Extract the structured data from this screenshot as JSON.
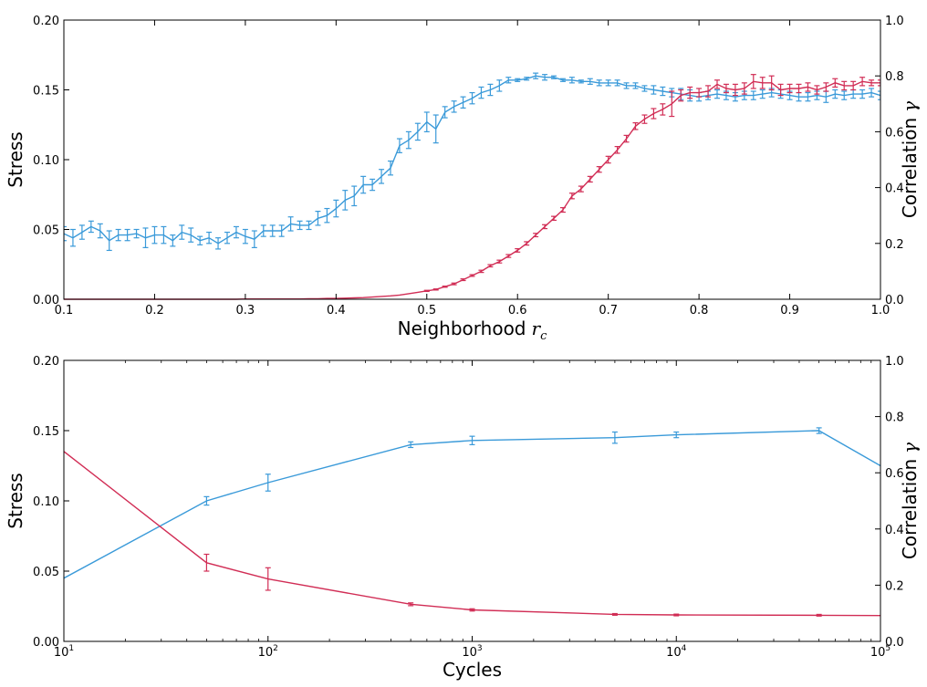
{
  "chart_data": [
    {
      "type": "line",
      "title": "",
      "xlabel": "Neighborhood",
      "xlabel_math": "r",
      "xlabel_sub": "c",
      "ylabel": "Stress",
      "y2label": "Correlation",
      "y2label_math": "γ",
      "xscale": "linear",
      "xlim": [
        0.1,
        1.0
      ],
      "ylim": [
        0,
        0.2
      ],
      "y2lim": [
        0,
        1.0
      ],
      "xticks": [
        "0.1",
        "0.2",
        "0.3",
        "0.4",
        "0.5",
        "0.6",
        "0.7",
        "0.8",
        "0.9",
        "1.0"
      ],
      "yticks": [
        "0.00",
        "0.05",
        "0.10",
        "0.15",
        "0.20"
      ],
      "y2ticks": [
        "0.0",
        "0.2",
        "0.4",
        "0.6",
        "0.8",
        "1.0"
      ],
      "grid": false,
      "series": [
        {
          "color": "#3a9ad9",
          "axis": "left",
          "x": [
            0.1,
            0.11,
            0.12,
            0.13,
            0.14,
            0.15,
            0.16,
            0.17,
            0.18,
            0.19,
            0.2,
            0.21,
            0.22,
            0.23,
            0.24,
            0.25,
            0.26,
            0.27,
            0.28,
            0.29,
            0.3,
            0.31,
            0.32,
            0.33,
            0.34,
            0.35,
            0.36,
            0.37,
            0.38,
            0.39,
            0.4,
            0.41,
            0.42,
            0.43,
            0.44,
            0.45,
            0.46,
            0.47,
            0.48,
            0.49,
            0.5,
            0.51,
            0.52,
            0.53,
            0.54,
            0.55,
            0.56,
            0.57,
            0.58,
            0.59,
            0.6,
            0.61,
            0.62,
            0.63,
            0.64,
            0.65,
            0.66,
            0.67,
            0.68,
            0.69,
            0.7,
            0.71,
            0.72,
            0.73,
            0.74,
            0.75,
            0.76,
            0.77,
            0.78,
            0.79,
            0.8,
            0.81,
            0.82,
            0.83,
            0.84,
            0.85,
            0.86,
            0.87,
            0.88,
            0.89,
            0.9,
            0.91,
            0.92,
            0.93,
            0.94,
            0.95,
            0.96,
            0.97,
            0.98,
            0.99,
            1.0
          ],
          "y": [
            0.047,
            0.044,
            0.048,
            0.052,
            0.049,
            0.042,
            0.046,
            0.046,
            0.047,
            0.044,
            0.046,
            0.046,
            0.042,
            0.048,
            0.046,
            0.042,
            0.044,
            0.04,
            0.044,
            0.048,
            0.045,
            0.043,
            0.049,
            0.049,
            0.049,
            0.054,
            0.053,
            0.053,
            0.058,
            0.06,
            0.065,
            0.071,
            0.074,
            0.082,
            0.082,
            0.088,
            0.094,
            0.11,
            0.114,
            0.12,
            0.127,
            0.122,
            0.134,
            0.138,
            0.141,
            0.144,
            0.148,
            0.15,
            0.153,
            0.157,
            0.157,
            0.158,
            0.16,
            0.159,
            0.159,
            0.157,
            0.157,
            0.156,
            0.156,
            0.155,
            0.155,
            0.155,
            0.153,
            0.153,
            0.151,
            0.15,
            0.149,
            0.148,
            0.147,
            0.146,
            0.145,
            0.146,
            0.147,
            0.146,
            0.145,
            0.146,
            0.146,
            0.147,
            0.148,
            0.147,
            0.146,
            0.145,
            0.145,
            0.146,
            0.145,
            0.147,
            0.146,
            0.147,
            0.147,
            0.148,
            0.146
          ],
          "err": [
            0.005,
            0.006,
            0.005,
            0.004,
            0.005,
            0.007,
            0.004,
            0.004,
            0.003,
            0.007,
            0.006,
            0.006,
            0.004,
            0.005,
            0.005,
            0.003,
            0.004,
            0.004,
            0.004,
            0.004,
            0.005,
            0.006,
            0.004,
            0.004,
            0.004,
            0.005,
            0.003,
            0.003,
            0.005,
            0.005,
            0.006,
            0.007,
            0.007,
            0.006,
            0.004,
            0.005,
            0.005,
            0.005,
            0.006,
            0.006,
            0.007,
            0.01,
            0.004,
            0.004,
            0.004,
            0.004,
            0.004,
            0.004,
            0.004,
            0.002,
            0.001,
            0.001,
            0.002,
            0.002,
            0.001,
            0.001,
            0.002,
            0.001,
            0.002,
            0.002,
            0.002,
            0.002,
            0.002,
            0.002,
            0.002,
            0.003,
            0.003,
            0.003,
            0.004,
            0.004,
            0.003,
            0.003,
            0.003,
            0.003,
            0.003,
            0.003,
            0.003,
            0.003,
            0.003,
            0.003,
            0.003,
            0.003,
            0.003,
            0.003,
            0.004,
            0.003,
            0.003,
            0.003,
            0.003,
            0.003,
            0.003
          ]
        },
        {
          "color": "#d12d55",
          "axis": "right",
          "x": [
            0.1,
            0.11,
            0.12,
            0.13,
            0.14,
            0.15,
            0.16,
            0.17,
            0.18,
            0.19,
            0.2,
            0.21,
            0.22,
            0.23,
            0.24,
            0.25,
            0.26,
            0.27,
            0.28,
            0.29,
            0.3,
            0.31,
            0.32,
            0.33,
            0.34,
            0.35,
            0.36,
            0.37,
            0.38,
            0.39,
            0.4,
            0.41,
            0.42,
            0.43,
            0.44,
            0.45,
            0.46,
            0.47,
            0.48,
            0.49,
            0.5,
            0.51,
            0.52,
            0.53,
            0.54,
            0.55,
            0.56,
            0.57,
            0.58,
            0.59,
            0.6,
            0.61,
            0.62,
            0.63,
            0.64,
            0.65,
            0.66,
            0.67,
            0.68,
            0.69,
            0.7,
            0.71,
            0.72,
            0.73,
            0.74,
            0.75,
            0.76,
            0.77,
            0.78,
            0.79,
            0.8,
            0.81,
            0.82,
            0.83,
            0.84,
            0.85,
            0.86,
            0.87,
            0.88,
            0.89,
            0.9,
            0.91,
            0.92,
            0.93,
            0.94,
            0.95,
            0.96,
            0.97,
            0.98,
            0.99,
            1.0
          ],
          "y": [
            0,
            0,
            0,
            0,
            0,
            0,
            0,
            0,
            0,
            0,
            0,
            0,
            0,
            0,
            0,
            0,
            0,
            0,
            0,
            0,
            0.001,
            0.001,
            0.001,
            0.001,
            0.001,
            0.001,
            0.001,
            0.002,
            0.002,
            0.003,
            0.003,
            0.004,
            0.005,
            0.006,
            0.008,
            0.01,
            0.012,
            0.015,
            0.02,
            0.025,
            0.03,
            0.035,
            0.045,
            0.055,
            0.07,
            0.085,
            0.1,
            0.12,
            0.135,
            0.155,
            0.175,
            0.2,
            0.23,
            0.26,
            0.29,
            0.32,
            0.37,
            0.395,
            0.43,
            0.465,
            0.5,
            0.535,
            0.575,
            0.62,
            0.645,
            0.665,
            0.68,
            0.7,
            0.73,
            0.74,
            0.74,
            0.745,
            0.77,
            0.755,
            0.75,
            0.755,
            0.78,
            0.775,
            0.775,
            0.75,
            0.755,
            0.755,
            0.76,
            0.75,
            0.76,
            0.775,
            0.765,
            0.765,
            0.78,
            0.775,
            0.775
          ],
          "err": [
            0,
            0,
            0,
            0,
            0,
            0,
            0,
            0,
            0,
            0,
            0,
            0,
            0,
            0,
            0,
            0,
            0,
            0,
            0,
            0,
            0,
            0,
            0,
            0,
            0,
            0,
            0,
            0,
            0,
            0,
            0,
            0,
            0,
            0,
            0,
            0,
            0,
            0,
            0,
            0,
            0.002,
            0.002,
            0.002,
            0.003,
            0.003,
            0.003,
            0.004,
            0.004,
            0.005,
            0.005,
            0.006,
            0.006,
            0.006,
            0.007,
            0.007,
            0.008,
            0.01,
            0.01,
            0.01,
            0.01,
            0.012,
            0.012,
            0.012,
            0.012,
            0.015,
            0.018,
            0.02,
            0.045,
            0.02,
            0.02,
            0.015,
            0.02,
            0.015,
            0.015,
            0.02,
            0.02,
            0.025,
            0.02,
            0.025,
            0.02,
            0.015,
            0.015,
            0.015,
            0.015,
            0.015,
            0.015,
            0.015,
            0.015,
            0.015,
            0.01,
            0.01
          ]
        }
      ]
    },
    {
      "type": "line",
      "title": "",
      "xlabel": "Cycles",
      "ylabel": "Stress",
      "y2label": "Correlation",
      "y2label_math": "γ",
      "xscale": "log",
      "xlim": [
        10,
        100000
      ],
      "ylim": [
        0,
        0.2
      ],
      "y2lim": [
        0,
        1.0
      ],
      "xticks": [
        {
          "base": "10",
          "exp": "1"
        },
        {
          "base": "10",
          "exp": "2"
        },
        {
          "base": "10",
          "exp": "3"
        },
        {
          "base": "10",
          "exp": "4"
        },
        {
          "base": "10",
          "exp": "5"
        }
      ],
      "yticks": [
        "0.00",
        "0.05",
        "0.10",
        "0.15",
        "0.20"
      ],
      "y2ticks": [
        "0.0",
        "0.2",
        "0.4",
        "0.6",
        "0.8",
        "1.0"
      ],
      "grid": false,
      "series": [
        {
          "color": "#3a9ad9",
          "axis": "left",
          "x": [
            10,
            50,
            100,
            500,
            1000,
            5000,
            10000,
            50000,
            100000
          ],
          "y": [
            0.045,
            0.1,
            0.113,
            0.14,
            0.143,
            0.145,
            0.147,
            0.15,
            0.125
          ],
          "err": [
            0,
            0.003,
            0.006,
            0.002,
            0.003,
            0.004,
            0.002,
            0.002,
            0
          ]
        },
        {
          "color": "#d12d55",
          "axis": "right",
          "x": [
            10,
            50,
            100,
            500,
            1000,
            5000,
            10000,
            50000,
            100000
          ],
          "y": [
            0.676,
            0.28,
            0.222,
            0.132,
            0.112,
            0.096,
            0.094,
            0.093,
            0.092
          ],
          "err": [
            0,
            0.03,
            0.04,
            0.005,
            0.004,
            0.003,
            0.003,
            0.003,
            0
          ]
        }
      ]
    }
  ]
}
